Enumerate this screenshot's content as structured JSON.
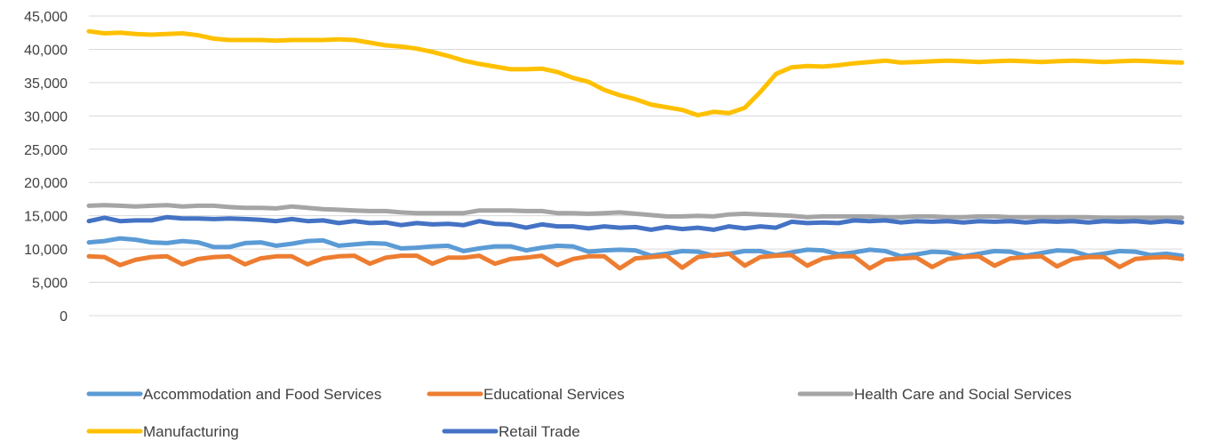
{
  "chart_data": {
    "type": "line",
    "title": "",
    "xlabel": "",
    "ylabel": "",
    "ylim": [
      0,
      45000
    ],
    "yticks": [
      0,
      5000,
      10000,
      15000,
      20000,
      25000,
      30000,
      35000,
      40000,
      45000
    ],
    "ytick_labels": [
      "0",
      "5,000",
      "10,000",
      "15,000",
      "20,000",
      "25,000",
      "30,000",
      "35,000",
      "40,000",
      "45,000"
    ],
    "grid": true,
    "legend_position": "bottom",
    "x": [
      1,
      2,
      3,
      4,
      5,
      6,
      7,
      8,
      9,
      10,
      11,
      12,
      13,
      14,
      15,
      16,
      17,
      18,
      19,
      20,
      21,
      22,
      23,
      24,
      25,
      26,
      27,
      28,
      29,
      30,
      31,
      32,
      33,
      34,
      35,
      36,
      37,
      38,
      39,
      40,
      41,
      42,
      43,
      44,
      45,
      46,
      47,
      48,
      49,
      50,
      51,
      52,
      53,
      54,
      55,
      56,
      57,
      58,
      59,
      60,
      61,
      62,
      63,
      64,
      65,
      66,
      67,
      68,
      69,
      70,
      71
    ],
    "series": [
      {
        "name": "Accommodation and Food Services",
        "color": "#5b9bd5",
        "values": [
          11000,
          11200,
          11600,
          11400,
          11000,
          10900,
          11200,
          11000,
          10300,
          10300,
          10900,
          11000,
          10500,
          10800,
          11200,
          11300,
          10500,
          10700,
          10900,
          10800,
          10100,
          10200,
          10400,
          10500,
          9700,
          10100,
          10400,
          10400,
          9800,
          10200,
          10500,
          10400,
          9600,
          9800,
          9900,
          9800,
          9000,
          9300,
          9700,
          9600,
          9000,
          9300,
          9700,
          9700,
          9100,
          9500,
          9900,
          9800,
          9200,
          9500,
          9900,
          9700,
          8900,
          9200,
          9600,
          9500,
          8900,
          9300,
          9700,
          9600,
          9000,
          9400,
          9800,
          9700,
          9000,
          9300,
          9700,
          9600,
          9100,
          9300,
          9000
        ]
      },
      {
        "name": "Educational Services",
        "color": "#ed7d31",
        "values": [
          8900,
          8800,
          7600,
          8400,
          8800,
          8900,
          7700,
          8500,
          8800,
          8900,
          7700,
          8600,
          8900,
          8900,
          7700,
          8600,
          8900,
          9000,
          7800,
          8700,
          9000,
          9000,
          7800,
          8700,
          8700,
          9000,
          7800,
          8500,
          8700,
          9000,
          7600,
          8500,
          8900,
          8900,
          7100,
          8600,
          8800,
          9000,
          7200,
          8800,
          9100,
          9300,
          7500,
          8800,
          9000,
          9100,
          7500,
          8600,
          8900,
          8900,
          7100,
          8400,
          8600,
          8700,
          7300,
          8500,
          8800,
          8900,
          7500,
          8600,
          8800,
          8900,
          7400,
          8500,
          8800,
          8800,
          7300,
          8500,
          8700,
          8800,
          8500
        ]
      },
      {
        "name": "Health Care and Social Services",
        "color": "#a5a5a5",
        "values": [
          16500,
          16600,
          16500,
          16400,
          16500,
          16600,
          16400,
          16500,
          16500,
          16300,
          16200,
          16200,
          16100,
          16400,
          16200,
          16000,
          15900,
          15800,
          15700,
          15700,
          15500,
          15400,
          15400,
          15400,
          15400,
          15800,
          15800,
          15800,
          15700,
          15700,
          15400,
          15400,
          15300,
          15400,
          15500,
          15300,
          15100,
          14900,
          14900,
          15000,
          14900,
          15200,
          15300,
          15200,
          15100,
          15000,
          14800,
          14900,
          14900,
          14900,
          14900,
          14800,
          14800,
          14900,
          14900,
          14800,
          14800,
          14900,
          14900,
          14800,
          14800,
          14800,
          14800,
          14800,
          14800,
          14700,
          14700,
          14700,
          14700,
          14700,
          14700
        ]
      },
      {
        "name": "Manufacturing",
        "color": "#ffc000",
        "values": [
          42700,
          42400,
          42500,
          42300,
          42200,
          42300,
          42400,
          42100,
          41600,
          41400,
          41400,
          41400,
          41300,
          41400,
          41400,
          41400,
          41500,
          41400,
          41000,
          40600,
          40400,
          40100,
          39600,
          39000,
          38300,
          37800,
          37400,
          37000,
          37000,
          37100,
          36600,
          35700,
          35100,
          33900,
          33100,
          32500,
          31700,
          31300,
          30900,
          30100,
          30600,
          30400,
          31200,
          33600,
          36300,
          37300,
          37500,
          37400,
          37600,
          37900,
          38100,
          38300,
          38000,
          38100,
          38200,
          38300,
          38200,
          38100,
          38200,
          38300,
          38200,
          38100,
          38200,
          38300,
          38200,
          38100,
          38200,
          38300,
          38200,
          38100,
          38000
        ]
      },
      {
        "name": "Retail Trade",
        "color": "#4472c4",
        "values": [
          14200,
          14700,
          14200,
          14300,
          14300,
          14800,
          14600,
          14600,
          14500,
          14600,
          14500,
          14400,
          14200,
          14500,
          14200,
          14300,
          13900,
          14200,
          13900,
          14000,
          13600,
          13900,
          13700,
          13800,
          13600,
          14200,
          13800,
          13700,
          13200,
          13700,
          13400,
          13400,
          13100,
          13400,
          13200,
          13300,
          12900,
          13300,
          13000,
          13200,
          12900,
          13400,
          13100,
          13400,
          13200,
          14100,
          13900,
          14000,
          13900,
          14300,
          14200,
          14300,
          14000,
          14200,
          14100,
          14200,
          14000,
          14200,
          14100,
          14200,
          14000,
          14200,
          14100,
          14200,
          14000,
          14200,
          14100,
          14200,
          14000,
          14200,
          14000
        ]
      }
    ]
  }
}
